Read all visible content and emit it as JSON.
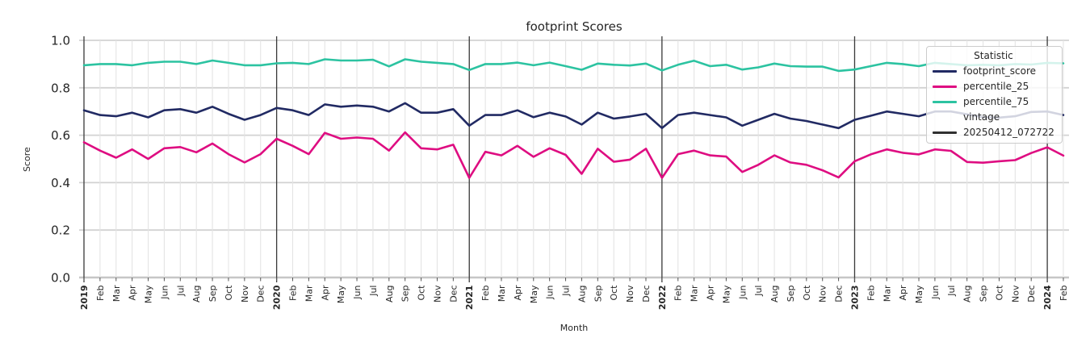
{
  "title": "footprint Scores",
  "axes": {
    "x_label": "Month",
    "y_label": "Score"
  },
  "legend": {
    "title": "Statistic",
    "entries": [
      {
        "label": "footprint_score",
        "color": "#212a63"
      },
      {
        "label": "percentile_25",
        "color": "#de0d81"
      },
      {
        "label": "percentile_75",
        "color": "#2cc3a1"
      }
    ],
    "group_title": "vintage",
    "vintage_entry": {
      "label": "20250412_072722",
      "color": "#2f2f2f"
    }
  },
  "style": {
    "text": "#262626",
    "grid_minor": "#e4e4e4",
    "grid_major": "#d2d2d2",
    "axis_line": "#c6c6c6",
    "tick": "#555555",
    "year_line": "#3a3a3a",
    "background": "#ffffff",
    "legend_border": "#cccccc"
  },
  "chart_data": {
    "type": "line",
    "title": "footprint Scores",
    "xlabel": "Month",
    "ylabel": "Score",
    "ylim": [
      0.0,
      1.0
    ],
    "yticks": [
      0.0,
      0.2,
      0.4,
      0.6,
      0.8,
      1.0
    ],
    "grid": true,
    "legend_position": "upper right",
    "x_start": "2019-01",
    "x_end": "2024-02",
    "year_marker_indices": [
      0,
      12,
      24,
      36,
      48,
      60
    ],
    "x_labels": [
      "2019",
      "Feb",
      "Mar",
      "Apr",
      "May",
      "Jun",
      "Jul",
      "Aug",
      "Sep",
      "Oct",
      "Nov",
      "Dec",
      "2020",
      "Feb",
      "Mar",
      "Apr",
      "May",
      "Jun",
      "Jul",
      "Aug",
      "Sep",
      "Oct",
      "Nov",
      "Dec",
      "2021",
      "Feb",
      "Mar",
      "Apr",
      "May",
      "Jun",
      "Jul",
      "Aug",
      "Sep",
      "Oct",
      "Nov",
      "Dec",
      "2022",
      "Feb",
      "Mar",
      "Apr",
      "May",
      "Jun",
      "Jul",
      "Aug",
      "Sep",
      "Oct",
      "Nov",
      "Dec",
      "2023",
      "Feb",
      "Mar",
      "Apr",
      "May",
      "Jun",
      "Jul",
      "Aug",
      "Sep",
      "Oct",
      "Nov",
      "Dec",
      "2024",
      "Feb"
    ],
    "series": [
      {
        "name": "footprint_score",
        "color": "#212a63",
        "values": [
          0.705,
          0.685,
          0.68,
          0.695,
          0.675,
          0.705,
          0.71,
          0.695,
          0.72,
          0.69,
          0.665,
          0.685,
          0.715,
          0.705,
          0.685,
          0.73,
          0.72,
          0.725,
          0.72,
          0.7,
          0.735,
          0.695,
          0.695,
          0.71,
          0.64,
          0.685,
          0.685,
          0.705,
          0.676,
          0.695,
          0.679,
          0.645,
          0.695,
          0.67,
          0.679,
          0.69,
          0.63,
          0.685,
          0.695,
          0.685,
          0.675,
          0.64,
          0.665,
          0.69,
          0.67,
          0.66,
          0.645,
          0.63,
          0.665,
          0.682,
          0.7,
          0.69,
          0.68,
          0.7,
          0.7,
          0.688,
          0.676,
          0.674,
          0.68,
          0.698,
          0.7,
          0.685
        ]
      },
      {
        "name": "percentile_25",
        "color": "#de0d81",
        "values": [
          0.57,
          0.535,
          0.505,
          0.54,
          0.5,
          0.545,
          0.55,
          0.528,
          0.565,
          0.52,
          0.485,
          0.52,
          0.585,
          0.555,
          0.52,
          0.61,
          0.585,
          0.59,
          0.585,
          0.535,
          0.612,
          0.545,
          0.54,
          0.56,
          0.42,
          0.53,
          0.515,
          0.555,
          0.509,
          0.545,
          0.517,
          0.437,
          0.543,
          0.488,
          0.497,
          0.543,
          0.42,
          0.52,
          0.535,
          0.515,
          0.51,
          0.445,
          0.475,
          0.515,
          0.485,
          0.475,
          0.452,
          0.422,
          0.49,
          0.519,
          0.54,
          0.526,
          0.519,
          0.54,
          0.534,
          0.487,
          0.484,
          0.49,
          0.495,
          0.525,
          0.549,
          0.514
        ]
      },
      {
        "name": "percentile_75",
        "color": "#2cc3a1",
        "values": [
          0.895,
          0.9,
          0.9,
          0.895,
          0.905,
          0.91,
          0.91,
          0.9,
          0.915,
          0.905,
          0.895,
          0.895,
          0.903,
          0.905,
          0.9,
          0.92,
          0.915,
          0.915,
          0.918,
          0.89,
          0.92,
          0.91,
          0.905,
          0.9,
          0.875,
          0.9,
          0.9,
          0.906,
          0.895,
          0.906,
          0.891,
          0.876,
          0.902,
          0.897,
          0.894,
          0.902,
          0.873,
          0.897,
          0.914,
          0.891,
          0.897,
          0.877,
          0.886,
          0.902,
          0.891,
          0.889,
          0.889,
          0.871,
          0.877,
          0.891,
          0.905,
          0.9,
          0.891,
          0.905,
          0.9,
          0.895,
          0.897,
          0.895,
          0.9,
          0.898,
          0.905,
          0.903
        ]
      }
    ],
    "vintage": {
      "name": "20250412_072722",
      "color": "#2f2f2f"
    }
  }
}
